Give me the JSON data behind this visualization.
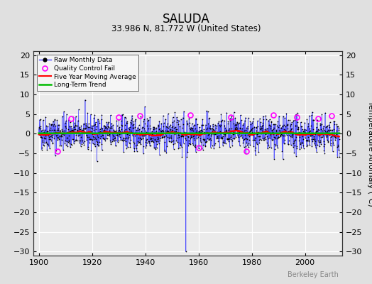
{
  "title": "SALUDA",
  "subtitle": "33.986 N, 81.772 W (United States)",
  "ylabel": "Temperature Anomaly (°C)",
  "xlabel_ticks": [
    1900,
    1920,
    1940,
    1960,
    1980,
    2000
  ],
  "yticks": [
    -30,
    -25,
    -20,
    -15,
    -10,
    -5,
    0,
    5,
    10,
    15,
    20
  ],
  "xlim": [
    1898,
    2014
  ],
  "ylim": [
    -31,
    21
  ],
  "bg_color": "#e0e0e0",
  "plot_bg_color": "#ebebeb",
  "grid_color": "#ffffff",
  "raw_line_color": "#4444ff",
  "dot_color": "#000000",
  "qc_color": "#ff00ff",
  "moving_avg_color": "#ff0000",
  "trend_color": "#00bb00",
  "watermark": "Berkeley Earth",
  "watermark_color": "#888888",
  "seed": 42,
  "n_years": 113,
  "start_year": 1900,
  "noise_std": 2.2,
  "spike_year": 1955,
  "spike_value": -30,
  "qc_fail_points": [
    [
      1907,
      -4.5
    ],
    [
      1912,
      3.8
    ],
    [
      1930,
      4.2
    ],
    [
      1938,
      4.5
    ],
    [
      1957,
      4.8
    ],
    [
      1960,
      -3.5
    ],
    [
      1972,
      4.2
    ],
    [
      1978,
      -4.5
    ],
    [
      1988,
      4.8
    ],
    [
      1997,
      4.2
    ],
    [
      2005,
      3.8
    ],
    [
      2010,
      4.5
    ]
  ]
}
